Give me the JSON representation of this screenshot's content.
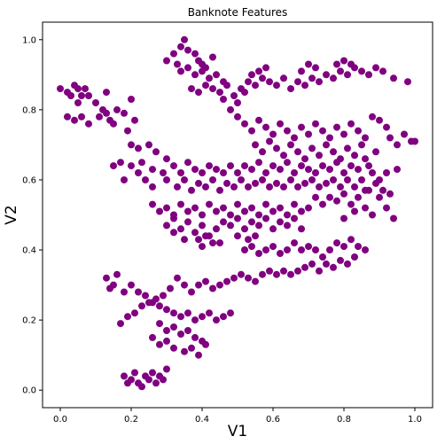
{
  "chart_data": {
    "type": "scatter",
    "title": "Banknote Features",
    "xlabel": "V1",
    "ylabel": "V2",
    "xlim": [
      -0.05,
      1.05
    ],
    "ylim": [
      -0.05,
      1.05
    ],
    "xticks": [
      0.0,
      0.2,
      0.4,
      0.6,
      0.8,
      1.0
    ],
    "yticks": [
      0.0,
      0.2,
      0.4,
      0.6,
      0.8,
      1.0
    ],
    "xtick_labels": [
      "0.0",
      "0.2",
      "0.4",
      "0.6",
      "0.8",
      "1.0"
    ],
    "ytick_labels": [
      "0.0",
      "0.2",
      "0.4",
      "0.6",
      "0.8",
      "1.0"
    ],
    "marker_color": "#800080",
    "grid": false,
    "points": [
      [
        0.0,
        0.86
      ],
      [
        0.02,
        0.85
      ],
      [
        0.04,
        0.87
      ],
      [
        0.05,
        0.86
      ],
      [
        0.03,
        0.84
      ],
      [
        0.06,
        0.84
      ],
      [
        0.07,
        0.86
      ],
      [
        0.08,
        0.84
      ],
      [
        0.1,
        0.82
      ],
      [
        0.05,
        0.82
      ],
      [
        0.02,
        0.78
      ],
      [
        0.04,
        0.77
      ],
      [
        0.06,
        0.78
      ],
      [
        0.08,
        0.76
      ],
      [
        0.11,
        0.78
      ],
      [
        0.12,
        0.8
      ],
      [
        0.13,
        0.79
      ],
      [
        0.14,
        0.77
      ],
      [
        0.15,
        0.76
      ],
      [
        0.13,
        0.85
      ],
      [
        0.16,
        0.8
      ],
      [
        0.18,
        0.79
      ],
      [
        0.2,
        0.83
      ],
      [
        0.19,
        0.74
      ],
      [
        0.21,
        0.77
      ],
      [
        0.2,
        0.7
      ],
      [
        0.22,
        0.69
      ],
      [
        0.25,
        0.7
      ],
      [
        0.27,
        0.68
      ],
      [
        0.2,
        0.64
      ],
      [
        0.22,
        0.62
      ],
      [
        0.23,
        0.65
      ],
      [
        0.26,
        0.63
      ],
      [
        0.15,
        0.64
      ],
      [
        0.17,
        0.65
      ],
      [
        0.18,
        0.6
      ],
      [
        0.24,
        0.6
      ],
      [
        0.26,
        0.58
      ],
      [
        0.29,
        0.62
      ],
      [
        0.3,
        0.66
      ],
      [
        0.32,
        0.64
      ],
      [
        0.34,
        0.62
      ],
      [
        0.36,
        0.65
      ],
      [
        0.38,
        0.63
      ],
      [
        0.4,
        0.62
      ],
      [
        0.42,
        0.64
      ],
      [
        0.44,
        0.63
      ],
      [
        0.46,
        0.62
      ],
      [
        0.48,
        0.64
      ],
      [
        0.5,
        0.62
      ],
      [
        0.52,
        0.64
      ],
      [
        0.54,
        0.63
      ],
      [
        0.56,
        0.65
      ],
      [
        0.58,
        0.62
      ],
      [
        0.6,
        0.64
      ],
      [
        0.62,
        0.63
      ],
      [
        0.64,
        0.65
      ],
      [
        0.66,
        0.62
      ],
      [
        0.68,
        0.64
      ],
      [
        0.7,
        0.63
      ],
      [
        0.72,
        0.62
      ],
      [
        0.74,
        0.64
      ],
      [
        0.76,
        0.63
      ],
      [
        0.78,
        0.65
      ],
      [
        0.8,
        0.62
      ],
      [
        0.82,
        0.64
      ],
      [
        0.84,
        0.63
      ],
      [
        0.86,
        0.66
      ],
      [
        0.88,
        0.62
      ],
      [
        0.9,
        0.6
      ],
      [
        0.3,
        0.6
      ],
      [
        0.33,
        0.58
      ],
      [
        0.35,
        0.6
      ],
      [
        0.37,
        0.57
      ],
      [
        0.39,
        0.59
      ],
      [
        0.41,
        0.58
      ],
      [
        0.43,
        0.6
      ],
      [
        0.45,
        0.57
      ],
      [
        0.47,
        0.59
      ],
      [
        0.49,
        0.58
      ],
      [
        0.51,
        0.6
      ],
      [
        0.53,
        0.58
      ],
      [
        0.55,
        0.59
      ],
      [
        0.57,
        0.6
      ],
      [
        0.59,
        0.58
      ],
      [
        0.61,
        0.59
      ],
      [
        0.63,
        0.58
      ],
      [
        0.65,
        0.6
      ],
      [
        0.67,
        0.58
      ],
      [
        0.69,
        0.59
      ],
      [
        0.71,
        0.6
      ],
      [
        0.73,
        0.58
      ],
      [
        0.75,
        0.59
      ],
      [
        0.77,
        0.6
      ],
      [
        0.79,
        0.58
      ],
      [
        0.81,
        0.6
      ],
      [
        0.83,
        0.58
      ],
      [
        0.85,
        0.6
      ],
      [
        0.87,
        0.57
      ],
      [
        0.89,
        0.59
      ],
      [
        0.26,
        0.53
      ],
      [
        0.28,
        0.51
      ],
      [
        0.3,
        0.52
      ],
      [
        0.32,
        0.5
      ],
      [
        0.34,
        0.53
      ],
      [
        0.36,
        0.51
      ],
      [
        0.38,
        0.52
      ],
      [
        0.4,
        0.5
      ],
      [
        0.42,
        0.53
      ],
      [
        0.44,
        0.51
      ],
      [
        0.46,
        0.52
      ],
      [
        0.48,
        0.5
      ],
      [
        0.5,
        0.53
      ],
      [
        0.52,
        0.51
      ],
      [
        0.54,
        0.52
      ],
      [
        0.56,
        0.5
      ],
      [
        0.58,
        0.53
      ],
      [
        0.6,
        0.51
      ],
      [
        0.62,
        0.52
      ],
      [
        0.64,
        0.5
      ],
      [
        0.66,
        0.53
      ],
      [
        0.68,
        0.51
      ],
      [
        0.7,
        0.52
      ],
      [
        0.72,
        0.55
      ],
      [
        0.74,
        0.53
      ],
      [
        0.76,
        0.55
      ],
      [
        0.78,
        0.54
      ],
      [
        0.8,
        0.56
      ],
      [
        0.82,
        0.53
      ],
      [
        0.84,
        0.55
      ],
      [
        0.86,
        0.52
      ],
      [
        0.88,
        0.5
      ],
      [
        0.9,
        0.55
      ],
      [
        0.92,
        0.52
      ],
      [
        0.94,
        0.49
      ],
      [
        0.91,
        0.57
      ],
      [
        0.93,
        0.56
      ],
      [
        0.86,
        0.57
      ],
      [
        0.83,
        0.51
      ],
      [
        0.8,
        0.49
      ],
      [
        0.3,
        0.47
      ],
      [
        0.32,
        0.49
      ],
      [
        0.34,
        0.46
      ],
      [
        0.36,
        0.48
      ],
      [
        0.38,
        0.45
      ],
      [
        0.4,
        0.47
      ],
      [
        0.42,
        0.44
      ],
      [
        0.44,
        0.46
      ],
      [
        0.46,
        0.48
      ],
      [
        0.48,
        0.47
      ],
      [
        0.5,
        0.49
      ],
      [
        0.52,
        0.46
      ],
      [
        0.54,
        0.48
      ],
      [
        0.56,
        0.47
      ],
      [
        0.58,
        0.49
      ],
      [
        0.6,
        0.46
      ],
      [
        0.62,
        0.48
      ],
      [
        0.64,
        0.47
      ],
      [
        0.66,
        0.49
      ],
      [
        0.68,
        0.46
      ],
      [
        0.32,
        0.45
      ],
      [
        0.35,
        0.43
      ],
      [
        0.39,
        0.43
      ],
      [
        0.4,
        0.41
      ],
      [
        0.41,
        0.44
      ],
      [
        0.43,
        0.42
      ],
      [
        0.5,
        0.44
      ],
      [
        0.55,
        0.44
      ],
      [
        0.45,
        0.42
      ],
      [
        0.53,
        0.43
      ],
      [
        0.52,
        0.4
      ],
      [
        0.54,
        0.41
      ],
      [
        0.56,
        0.39
      ],
      [
        0.58,
        0.4
      ],
      [
        0.6,
        0.41
      ],
      [
        0.62,
        0.39
      ],
      [
        0.64,
        0.4
      ],
      [
        0.66,
        0.42
      ],
      [
        0.68,
        0.4
      ],
      [
        0.7,
        0.41
      ],
      [
        0.72,
        0.4
      ],
      [
        0.74,
        0.38
      ],
      [
        0.76,
        0.4
      ],
      [
        0.78,
        0.42
      ],
      [
        0.8,
        0.41
      ],
      [
        0.82,
        0.43
      ],
      [
        0.84,
        0.41
      ],
      [
        0.86,
        0.4
      ],
      [
        0.83,
        0.38
      ],
      [
        0.81,
        0.36
      ],
      [
        0.79,
        0.37
      ],
      [
        0.77,
        0.35
      ],
      [
        0.75,
        0.36
      ],
      [
        0.73,
        0.34
      ],
      [
        0.71,
        0.36
      ],
      [
        0.69,
        0.35
      ],
      [
        0.67,
        0.34
      ],
      [
        0.65,
        0.33
      ],
      [
        0.63,
        0.34
      ],
      [
        0.61,
        0.33
      ],
      [
        0.59,
        0.34
      ],
      [
        0.57,
        0.33
      ],
      [
        0.55,
        0.31
      ],
      [
        0.53,
        0.32
      ],
      [
        0.51,
        0.33
      ],
      [
        0.49,
        0.32
      ],
      [
        0.47,
        0.31
      ],
      [
        0.45,
        0.3
      ],
      [
        0.43,
        0.29
      ],
      [
        0.41,
        0.31
      ],
      [
        0.39,
        0.3
      ],
      [
        0.37,
        0.28
      ],
      [
        0.35,
        0.3
      ],
      [
        0.33,
        0.32
      ],
      [
        0.31,
        0.29
      ],
      [
        0.29,
        0.27
      ],
      [
        0.27,
        0.26
      ],
      [
        0.25,
        0.25
      ],
      [
        0.23,
        0.24
      ],
      [
        0.21,
        0.22
      ],
      [
        0.19,
        0.21
      ],
      [
        0.17,
        0.19
      ],
      [
        0.15,
        0.3
      ],
      [
        0.13,
        0.32
      ],
      [
        0.16,
        0.33
      ],
      [
        0.14,
        0.29
      ],
      [
        0.18,
        0.28
      ],
      [
        0.2,
        0.3
      ],
      [
        0.22,
        0.28
      ],
      [
        0.24,
        0.27
      ],
      [
        0.26,
        0.25
      ],
      [
        0.28,
        0.24
      ],
      [
        0.3,
        0.23
      ],
      [
        0.32,
        0.22
      ],
      [
        0.34,
        0.21
      ],
      [
        0.36,
        0.22
      ],
      [
        0.38,
        0.2
      ],
      [
        0.4,
        0.21
      ],
      [
        0.42,
        0.22
      ],
      [
        0.44,
        0.2
      ],
      [
        0.46,
        0.21
      ],
      [
        0.48,
        0.22
      ],
      [
        0.28,
        0.19
      ],
      [
        0.3,
        0.17
      ],
      [
        0.32,
        0.18
      ],
      [
        0.34,
        0.16
      ],
      [
        0.36,
        0.17
      ],
      [
        0.38,
        0.15
      ],
      [
        0.4,
        0.14
      ],
      [
        0.26,
        0.15
      ],
      [
        0.28,
        0.13
      ],
      [
        0.3,
        0.14
      ],
      [
        0.32,
        0.12
      ],
      [
        0.35,
        0.11
      ],
      [
        0.37,
        0.12
      ],
      [
        0.39,
        0.1
      ],
      [
        0.41,
        0.13
      ],
      [
        0.2,
        0.03
      ],
      [
        0.22,
        0.02
      ],
      [
        0.24,
        0.04
      ],
      [
        0.25,
        0.03
      ],
      [
        0.23,
        0.01
      ],
      [
        0.26,
        0.05
      ],
      [
        0.27,
        0.02
      ],
      [
        0.29,
        0.03
      ],
      [
        0.3,
        0.06
      ],
      [
        0.18,
        0.04
      ],
      [
        0.19,
        0.02
      ],
      [
        0.21,
        0.05
      ],
      [
        0.28,
        0.04
      ],
      [
        0.3,
        0.94
      ],
      [
        0.32,
        0.96
      ],
      [
        0.34,
        0.98
      ],
      [
        0.35,
        1.0
      ],
      [
        0.36,
        0.97
      ],
      [
        0.38,
        0.96
      ],
      [
        0.39,
        0.94
      ],
      [
        0.4,
        0.93
      ],
      [
        0.41,
        0.92
      ],
      [
        0.43,
        0.95
      ],
      [
        0.33,
        0.93
      ],
      [
        0.34,
        0.91
      ],
      [
        0.36,
        0.92
      ],
      [
        0.38,
        0.9
      ],
      [
        0.4,
        0.91
      ],
      [
        0.42,
        0.89
      ],
      [
        0.44,
        0.9
      ],
      [
        0.46,
        0.88
      ],
      [
        0.37,
        0.86
      ],
      [
        0.39,
        0.85
      ],
      [
        0.41,
        0.87
      ],
      [
        0.43,
        0.86
      ],
      [
        0.45,
        0.85
      ],
      [
        0.47,
        0.87
      ],
      [
        0.49,
        0.84
      ],
      [
        0.51,
        0.86
      ],
      [
        0.53,
        0.88
      ],
      [
        0.55,
        0.87
      ],
      [
        0.57,
        0.89
      ],
      [
        0.59,
        0.88
      ],
      [
        0.61,
        0.87
      ],
      [
        0.63,
        0.89
      ],
      [
        0.65,
        0.86
      ],
      [
        0.67,
        0.88
      ],
      [
        0.69,
        0.87
      ],
      [
        0.71,
        0.89
      ],
      [
        0.73,
        0.88
      ],
      [
        0.75,
        0.9
      ],
      [
        0.77,
        0.89
      ],
      [
        0.79,
        0.91
      ],
      [
        0.81,
        0.9
      ],
      [
        0.83,
        0.92
      ],
      [
        0.85,
        0.91
      ],
      [
        0.87,
        0.9
      ],
      [
        0.89,
        0.92
      ],
      [
        0.91,
        0.91
      ],
      [
        0.94,
        0.89
      ],
      [
        0.78,
        0.93
      ],
      [
        0.8,
        0.94
      ],
      [
        0.82,
        0.93
      ],
      [
        0.72,
        0.92
      ],
      [
        0.7,
        0.93
      ],
      [
        0.68,
        0.91
      ],
      [
        0.58,
        0.92
      ],
      [
        0.56,
        0.91
      ],
      [
        0.54,
        0.9
      ],
      [
        0.52,
        0.85
      ],
      [
        0.5,
        0.82
      ],
      [
        0.48,
        0.8
      ],
      [
        0.46,
        0.83
      ],
      [
        0.5,
        0.78
      ],
      [
        0.52,
        0.76
      ],
      [
        0.54,
        0.74
      ],
      [
        0.56,
        0.77
      ],
      [
        0.58,
        0.75
      ],
      [
        0.6,
        0.73
      ],
      [
        0.62,
        0.76
      ],
      [
        0.64,
        0.74
      ],
      [
        0.66,
        0.72
      ],
      [
        0.68,
        0.75
      ],
      [
        0.7,
        0.73
      ],
      [
        0.72,
        0.76
      ],
      [
        0.74,
        0.74
      ],
      [
        0.76,
        0.72
      ],
      [
        0.78,
        0.75
      ],
      [
        0.8,
        0.73
      ],
      [
        0.82,
        0.76
      ],
      [
        0.84,
        0.74
      ],
      [
        0.86,
        0.72
      ],
      [
        0.88,
        0.78
      ],
      [
        0.9,
        0.77
      ],
      [
        0.92,
        0.75
      ],
      [
        0.93,
        0.72
      ],
      [
        0.95,
        0.7
      ],
      [
        0.97,
        0.73
      ],
      [
        0.99,
        0.71
      ],
      [
        0.55,
        0.7
      ],
      [
        0.57,
        0.68
      ],
      [
        0.59,
        0.71
      ],
      [
        0.61,
        0.69
      ],
      [
        0.63,
        0.67
      ],
      [
        0.65,
        0.7
      ],
      [
        0.67,
        0.68
      ],
      [
        0.69,
        0.66
      ],
      [
        0.71,
        0.69
      ],
      [
        0.73,
        0.67
      ],
      [
        0.75,
        0.7
      ],
      [
        0.77,
        0.68
      ],
      [
        0.79,
        0.66
      ],
      [
        0.81,
        0.69
      ],
      [
        0.83,
        0.67
      ],
      [
        0.85,
        0.7
      ],
      [
        0.87,
        0.64
      ],
      [
        0.89,
        0.68
      ],
      [
        0.92,
        0.62
      ],
      [
        0.95,
        0.63
      ],
      [
        1.0,
        0.71
      ],
      [
        0.98,
        0.88
      ]
    ]
  }
}
